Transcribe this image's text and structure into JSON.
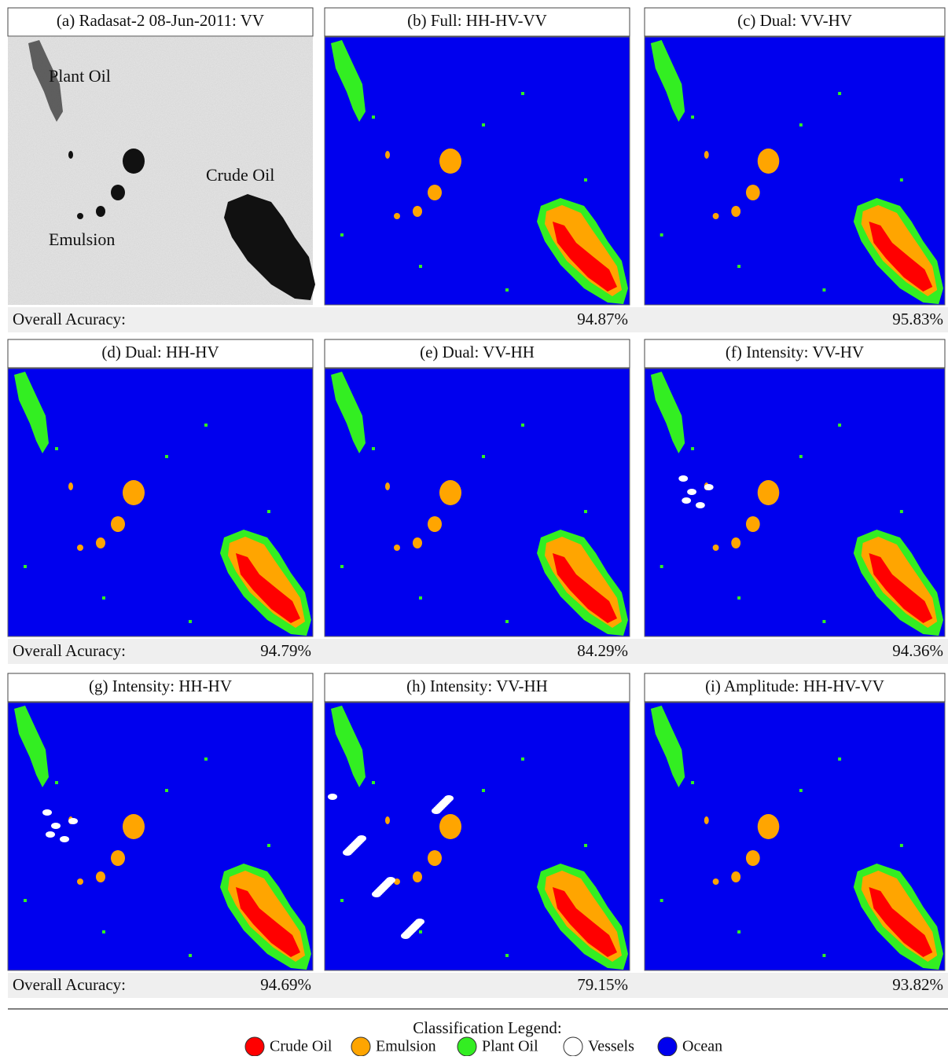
{
  "panels": [
    {
      "title": "(a) Radasat-2 08-Jun-2011: VV",
      "annotations": [
        "Plant Oil",
        "Crude Oil",
        "Emulsion"
      ]
    },
    {
      "title": "(b) Full: HH-HV-VV",
      "accuracy": "94.87%"
    },
    {
      "title": "(c) Dual: VV-HV",
      "accuracy": "95.83%"
    },
    {
      "title": "(d) Dual: HH-HV",
      "accuracy": "94.79%"
    },
    {
      "title": "(e) Dual: VV-HH",
      "accuracy": "84.29%"
    },
    {
      "title": "(f) Intensity: VV-HV",
      "accuracy": "94.36%"
    },
    {
      "title": "(g) Intensity: HH-HV",
      "accuracy": "94.69%"
    },
    {
      "title": "(h) Intensity: VV-HH",
      "accuracy": "79.15%"
    },
    {
      "title": "(i) Amplitude: HH-HV-VV",
      "accuracy": "93.82%"
    }
  ],
  "accuracy_rows": [
    "Overall Acuracy:",
    "Overall Acuracy:",
    "Overall Acuracy:"
  ],
  "legend": {
    "title": "Classification Legend:",
    "items": [
      {
        "label": "Crude Oil",
        "color": "#ff0000"
      },
      {
        "label": "Emulsion",
        "color": "#ffa500"
      },
      {
        "label": "Plant Oil",
        "color": "#33ee22"
      },
      {
        "label": "Vessels",
        "color": "#ffffff"
      },
      {
        "label": "Ocean",
        "color": "#0000ee"
      }
    ]
  }
}
